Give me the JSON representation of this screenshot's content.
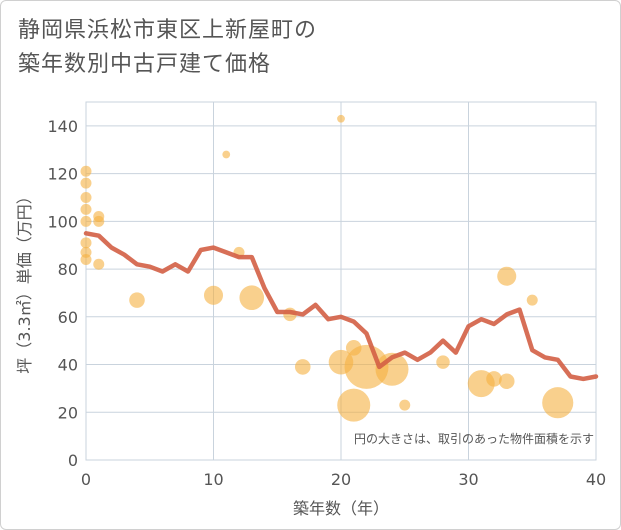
{
  "chart_data": {
    "type": "scatter",
    "title": [
      "静岡県浜松市東区上新屋町の",
      "築年数別中古戸建て価格"
    ],
    "xlabel": "築年数（年）",
    "ylabel": "坪（3.3㎡）単価（万円）",
    "xlim": [
      0,
      40
    ],
    "ylim": [
      0,
      150
    ],
    "xticks": [
      0,
      10,
      20,
      30,
      40
    ],
    "yticks": [
      0,
      20,
      40,
      60,
      80,
      100,
      120,
      140
    ],
    "note": "円の大きさは、取引のあった物件面積を示す",
    "colors": {
      "bubble": "#f5b041",
      "line": "#d35f45",
      "grid": "#c9d3dd"
    },
    "points": [
      {
        "x": 0,
        "y": 121,
        "s": 1
      },
      {
        "x": 0,
        "y": 116,
        "s": 1
      },
      {
        "x": 0,
        "y": 110,
        "s": 1
      },
      {
        "x": 0,
        "y": 105,
        "s": 1
      },
      {
        "x": 0,
        "y": 100,
        "s": 1
      },
      {
        "x": 0,
        "y": 91,
        "s": 1
      },
      {
        "x": 0,
        "y": 87,
        "s": 1
      },
      {
        "x": 0,
        "y": 84,
        "s": 1
      },
      {
        "x": 1,
        "y": 102,
        "s": 1
      },
      {
        "x": 1,
        "y": 100,
        "s": 1
      },
      {
        "x": 1,
        "y": 82,
        "s": 1
      },
      {
        "x": 4,
        "y": 67,
        "s": 2
      },
      {
        "x": 10,
        "y": 69,
        "s": 3
      },
      {
        "x": 11,
        "y": 128,
        "s": 0.5
      },
      {
        "x": 12,
        "y": 87,
        "s": 1
      },
      {
        "x": 13,
        "y": 68,
        "s": 5
      },
      {
        "x": 16,
        "y": 61,
        "s": 1.5
      },
      {
        "x": 17,
        "y": 39,
        "s": 2
      },
      {
        "x": 20,
        "y": 143,
        "s": 0.5
      },
      {
        "x": 20,
        "y": 41,
        "s": 5
      },
      {
        "x": 21,
        "y": 47,
        "s": 2
      },
      {
        "x": 21,
        "y": 23,
        "s": 9
      },
      {
        "x": 22,
        "y": 39,
        "s": 16
      },
      {
        "x": 24,
        "y": 38,
        "s": 9
      },
      {
        "x": 25,
        "y": 23,
        "s": 1
      },
      {
        "x": 28,
        "y": 41,
        "s": 1.5
      },
      {
        "x": 31,
        "y": 32,
        "s": 6
      },
      {
        "x": 32,
        "y": 34,
        "s": 2
      },
      {
        "x": 33,
        "y": 77,
        "s": 3
      },
      {
        "x": 33,
        "y": 33,
        "s": 2
      },
      {
        "x": 35,
        "y": 67,
        "s": 1
      },
      {
        "x": 37,
        "y": 24,
        "s": 8
      }
    ],
    "trend": {
      "x": [
        0,
        1,
        2,
        3,
        4,
        5,
        6,
        7,
        8,
        9,
        10,
        11,
        12,
        13,
        14,
        15,
        16,
        17,
        18,
        19,
        20,
        21,
        22,
        23,
        24,
        25,
        26,
        27,
        28,
        29,
        30,
        31,
        32,
        33,
        34,
        35,
        36,
        37,
        38,
        39,
        40
      ],
      "y": [
        95,
        94,
        89,
        86,
        82,
        81,
        79,
        82,
        79,
        88,
        89,
        87,
        85,
        85,
        72,
        62,
        62,
        61,
        65,
        59,
        60,
        58,
        53,
        39,
        43,
        45,
        42,
        45,
        50,
        45,
        56,
        59,
        57,
        61,
        63,
        46,
        43,
        42,
        35,
        34,
        35
      ]
    }
  }
}
